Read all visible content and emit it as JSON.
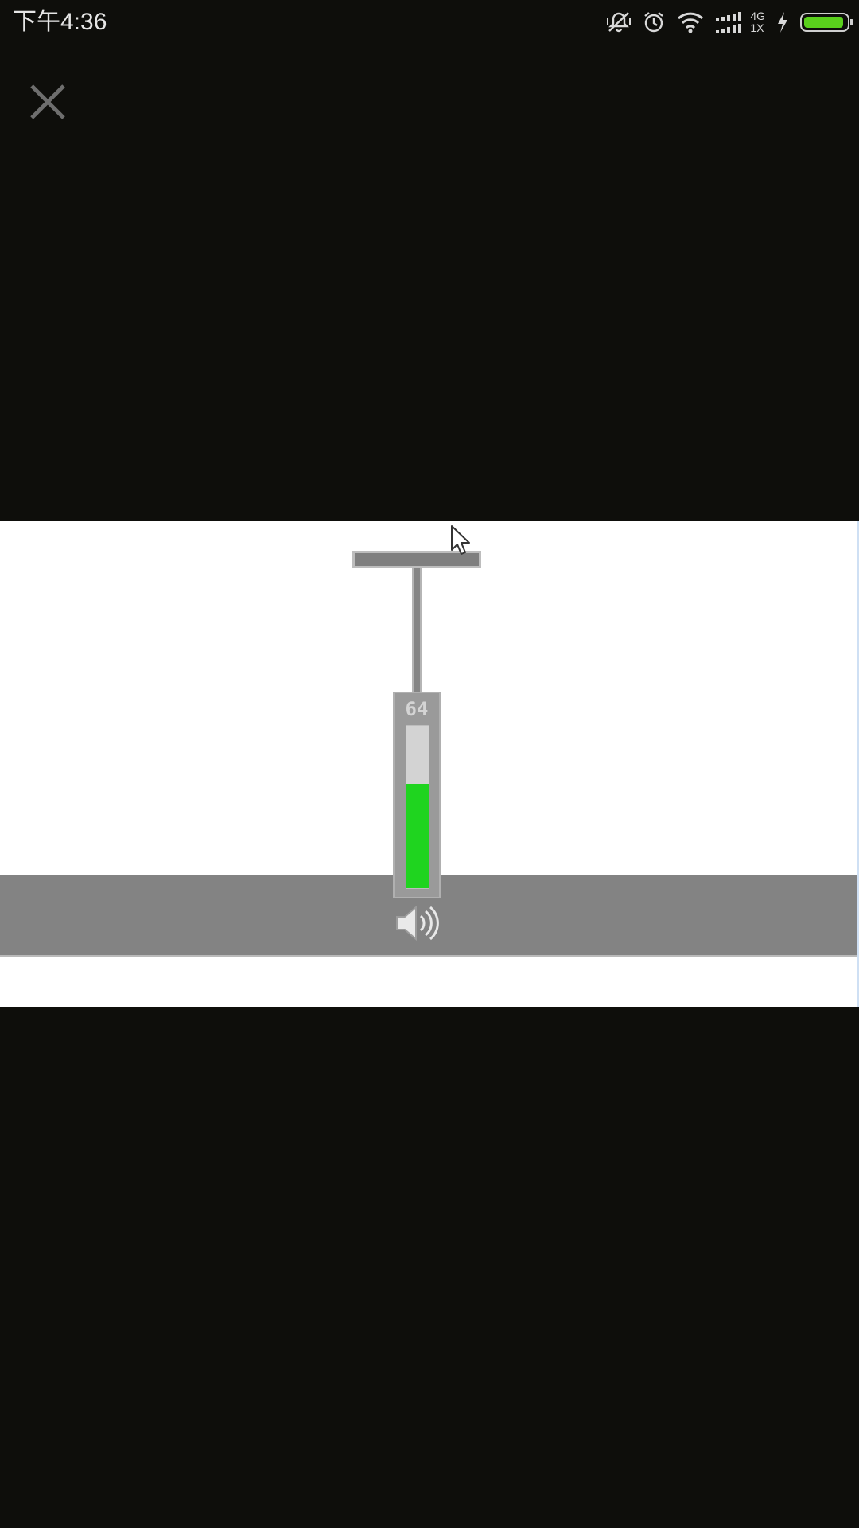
{
  "status_bar": {
    "time": "下午4:36",
    "icons": [
      "mute-vibrate-icon",
      "alarm-icon",
      "wifi-icon",
      "signal-icon",
      "charging-icon",
      "battery-icon"
    ],
    "network_type_top": "4G",
    "network_type_bottom": "1X",
    "battery_level_percent": 95,
    "battery_color": "#5ad01c"
  },
  "viewer": {
    "close_icon": "close-icon",
    "volume_value": "64",
    "volume_level_fraction": 0.64,
    "volume_level_color": "#1fd41f",
    "speaker_icon": "speaker-icon",
    "taskbar_color": "#838383"
  }
}
